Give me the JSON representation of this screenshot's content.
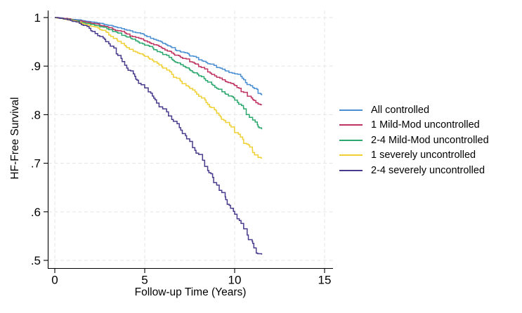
{
  "chart_data": {
    "type": "line",
    "subtype": "kaplan-meier-step-survival",
    "title": "",
    "xlabel": "Follow-up Time (Years)",
    "ylabel": "HF-Free Survival",
    "xlim": [
      0,
      15
    ],
    "ylim": [
      0.5,
      1.0
    ],
    "xticks": {
      "values": [
        0,
        5,
        10,
        15
      ],
      "labels": [
        "0",
        "5",
        "10",
        "15"
      ]
    },
    "yticks": {
      "values": [
        0.5,
        0.6,
        0.7,
        0.8,
        0.9,
        1.0
      ],
      "labels": [
        ".5",
        ".6",
        ".7",
        ".8",
        ".9",
        "1"
      ]
    },
    "grid": {
      "show": true,
      "style": "dashed",
      "color": "#e9e9e9"
    },
    "axis_color": "#000000",
    "legend_position": "right",
    "series": [
      {
        "name": "All controlled",
        "color": "#4a8fd3",
        "points": [
          [
            0,
            1.0
          ],
          [
            0.5,
            0.998
          ],
          [
            1,
            0.996
          ],
          [
            1.5,
            0.994
          ],
          [
            2,
            0.991
          ],
          [
            2.5,
            0.988
          ],
          [
            3,
            0.984
          ],
          [
            3.5,
            0.979
          ],
          [
            4,
            0.974
          ],
          [
            4.5,
            0.969
          ],
          [
            5,
            0.963
          ],
          [
            5.5,
            0.955
          ],
          [
            6,
            0.947
          ],
          [
            6.5,
            0.938
          ],
          [
            7,
            0.929
          ],
          [
            7.5,
            0.921
          ],
          [
            8,
            0.913
          ],
          [
            8.5,
            0.905
          ],
          [
            9,
            0.897
          ],
          [
            9.5,
            0.89
          ],
          [
            10,
            0.884
          ],
          [
            10.5,
            0.872
          ],
          [
            11,
            0.856
          ],
          [
            11.3,
            0.844
          ],
          [
            11.5,
            0.84
          ]
        ]
      },
      {
        "name": "1 Mild-Mod uncontrolled",
        "color": "#bf3360",
        "points": [
          [
            0,
            1.0
          ],
          [
            0.5,
            0.998
          ],
          [
            1,
            0.995
          ],
          [
            1.5,
            0.992
          ],
          [
            2,
            0.988
          ],
          [
            2.5,
            0.984
          ],
          [
            3,
            0.979
          ],
          [
            3.5,
            0.973
          ],
          [
            4,
            0.966
          ],
          [
            4.5,
            0.959
          ],
          [
            5,
            0.952
          ],
          [
            5.5,
            0.944
          ],
          [
            6,
            0.936
          ],
          [
            6.5,
            0.927
          ],
          [
            7,
            0.918
          ],
          [
            7.5,
            0.909
          ],
          [
            8,
            0.899
          ],
          [
            8.5,
            0.888
          ],
          [
            9,
            0.877
          ],
          [
            9.5,
            0.868
          ],
          [
            10,
            0.86
          ],
          [
            10.5,
            0.846
          ],
          [
            11,
            0.831
          ],
          [
            11.3,
            0.822
          ],
          [
            11.5,
            0.82
          ]
        ]
      },
      {
        "name": "2-4 Mild-Mod uncontrolled",
        "color": "#2ca86e",
        "points": [
          [
            0,
            1.0
          ],
          [
            0.5,
            0.997
          ],
          [
            1,
            0.994
          ],
          [
            1.5,
            0.99
          ],
          [
            2,
            0.986
          ],
          [
            2.5,
            0.981
          ],
          [
            3,
            0.975
          ],
          [
            3.5,
            0.968
          ],
          [
            4,
            0.96
          ],
          [
            4.5,
            0.952
          ],
          [
            5,
            0.943
          ],
          [
            5.5,
            0.934
          ],
          [
            6,
            0.924
          ],
          [
            6.5,
            0.914
          ],
          [
            7,
            0.903
          ],
          [
            7.5,
            0.892
          ],
          [
            8,
            0.88
          ],
          [
            8.5,
            0.867
          ],
          [
            9,
            0.854
          ],
          [
            9.5,
            0.842
          ],
          [
            10,
            0.83
          ],
          [
            10.5,
            0.812
          ],
          [
            11,
            0.789
          ],
          [
            11.3,
            0.775
          ],
          [
            11.5,
            0.77
          ]
        ]
      },
      {
        "name": "1 severely uncontrolled",
        "color": "#f0d034",
        "points": [
          [
            0,
            1.0
          ],
          [
            0.5,
            0.997
          ],
          [
            1,
            0.993
          ],
          [
            1.5,
            0.988
          ],
          [
            2,
            0.982
          ],
          [
            2.5,
            0.975
          ],
          [
            3,
            0.964
          ],
          [
            3.5,
            0.951
          ],
          [
            4,
            0.938
          ],
          [
            4.5,
            0.929
          ],
          [
            5,
            0.92
          ],
          [
            5.5,
            0.909
          ],
          [
            6,
            0.896
          ],
          [
            6.5,
            0.883
          ],
          [
            7,
            0.869
          ],
          [
            7.5,
            0.854
          ],
          [
            8,
            0.838
          ],
          [
            8.5,
            0.821
          ],
          [
            9,
            0.803
          ],
          [
            9.5,
            0.784
          ],
          [
            10,
            0.763
          ],
          [
            10.5,
            0.741
          ],
          [
            11,
            0.722
          ],
          [
            11.3,
            0.712
          ],
          [
            11.5,
            0.71
          ]
        ]
      },
      {
        "name": "2-4 severely uncontrolled",
        "color": "#483a8c",
        "points": [
          [
            0,
            1.0
          ],
          [
            0.5,
            0.997
          ],
          [
            1,
            0.992
          ],
          [
            1.5,
            0.985
          ],
          [
            2,
            0.973
          ],
          [
            2.5,
            0.961
          ],
          [
            3,
            0.946
          ],
          [
            3.5,
            0.922
          ],
          [
            4,
            0.896
          ],
          [
            4.5,
            0.873
          ],
          [
            5,
            0.855
          ],
          [
            5.5,
            0.834
          ],
          [
            6,
            0.812
          ],
          [
            6.5,
            0.79
          ],
          [
            7,
            0.768
          ],
          [
            7.5,
            0.745
          ],
          [
            8,
            0.718
          ],
          [
            8.5,
            0.685
          ],
          [
            9,
            0.655
          ],
          [
            9.5,
            0.625
          ],
          [
            10,
            0.595
          ],
          [
            10.5,
            0.565
          ],
          [
            11,
            0.535
          ],
          [
            11.2,
            0.515
          ],
          [
            11.5,
            0.512
          ]
        ]
      }
    ]
  }
}
